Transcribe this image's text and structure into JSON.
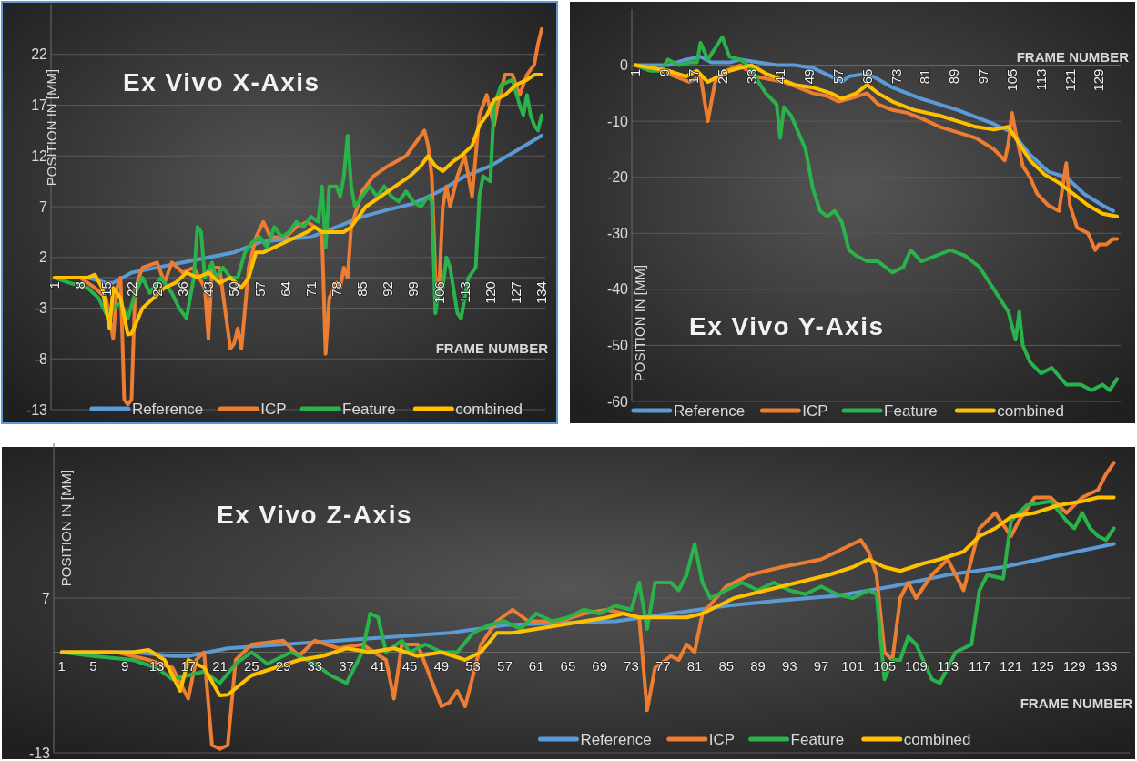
{
  "chart_data": [
    {
      "type": "line",
      "title": "Ex Vivo X-Axis",
      "xlabel": "FRAME NUMBER",
      "ylabel": "POSITION IN [MM]",
      "xlim": [
        0,
        135
      ],
      "xticks": [
        1,
        8,
        15,
        22,
        29,
        36,
        43,
        50,
        57,
        64,
        71,
        78,
        85,
        92,
        99,
        106,
        113,
        120,
        127,
        134
      ],
      "ylim": [
        -13,
        27
      ],
      "yticks": [
        -13,
        -8,
        -3,
        2,
        7,
        12,
        17,
        22
      ],
      "grid": "y",
      "legend": "bottom",
      "series": [
        {
          "name": "Reference",
          "color": "#5b9bd5",
          "x": [
            1,
            10,
            15,
            17,
            22,
            29,
            36,
            43,
            50,
            57,
            64,
            71,
            78,
            85,
            92,
            99,
            106,
            113,
            120,
            127,
            134
          ],
          "values": [
            0,
            0,
            -0.5,
            -0.5,
            0.5,
            1,
            1.5,
            2,
            2.5,
            3.5,
            3.8,
            4,
            5,
            6,
            6.7,
            7.3,
            8.5,
            10,
            11,
            12.5,
            14
          ]
        },
        {
          "name": "ICP",
          "color": "#ed7d31",
          "x": [
            1,
            8,
            12,
            15,
            17,
            18,
            19,
            20,
            21,
            22,
            23,
            25,
            29,
            31,
            33,
            36,
            39,
            42,
            43,
            44,
            46,
            49,
            50,
            51,
            52,
            54,
            56,
            58,
            60,
            64,
            67,
            70,
            72,
            74,
            75,
            76,
            78,
            79,
            80,
            81,
            82,
            85,
            88,
            92,
            97,
            100,
            102,
            103,
            104,
            105,
            106,
            107,
            108,
            109,
            111,
            113,
            115,
            117,
            119,
            121,
            122,
            124,
            126,
            128,
            130,
            132,
            133,
            134
          ],
          "values": [
            0,
            0,
            -1,
            -2,
            -6,
            -1,
            0,
            -12,
            -12.5,
            -12,
            -1,
            1,
            1.5,
            -0.5,
            1.5,
            0.5,
            1,
            -1,
            -6,
            1,
            1,
            -7,
            -6.5,
            -5,
            -7,
            1,
            4,
            5.5,
            4,
            4,
            5,
            5.5,
            5,
            4.5,
            -7.5,
            -2,
            -0.5,
            -1,
            1,
            0,
            5,
            8.5,
            10,
            11,
            12,
            13.5,
            14.5,
            13,
            10,
            0,
            -1,
            7,
            9,
            7,
            10,
            12,
            8,
            16,
            18,
            15,
            17,
            20,
            20,
            18,
            20,
            21,
            23,
            24.5
          ]
        },
        {
          "name": "Feature",
          "color": "#2ab34b",
          "x": [
            1,
            5,
            10,
            13,
            15,
            17,
            19,
            21,
            23,
            25,
            27,
            30,
            33,
            35,
            37,
            39,
            40,
            41,
            42,
            44,
            45,
            47,
            49,
            51,
            53,
            55,
            57,
            59,
            61,
            63,
            65,
            67,
            69,
            71,
            73,
            74,
            75,
            76,
            78,
            79,
            80,
            81,
            82,
            83,
            85,
            87,
            89,
            91,
            93,
            95,
            97,
            99,
            101,
            103,
            104,
            105,
            106,
            107,
            108,
            109,
            111,
            112,
            114,
            116,
            117,
            118,
            120,
            121,
            123,
            126,
            128,
            129,
            130,
            131,
            132,
            133,
            134
          ],
          "values": [
            0,
            -0.5,
            -1,
            -2,
            -3.5,
            -3,
            -2.5,
            -4,
            -1.5,
            0,
            -1.5,
            0,
            -1.5,
            -3,
            -4,
            0,
            5,
            4.5,
            0,
            1.5,
            0,
            1,
            0,
            0,
            2.5,
            3.5,
            4,
            3,
            5,
            4,
            4.5,
            5.5,
            5,
            6,
            5.5,
            9,
            3,
            9,
            9,
            8,
            10,
            14,
            9,
            7,
            8,
            9,
            8,
            9,
            8,
            7.5,
            8.5,
            7.5,
            7,
            8,
            7.5,
            -3.5,
            -1,
            -1,
            2,
            1,
            -3.5,
            -4,
            0,
            1,
            8,
            10,
            9.5,
            17,
            19,
            19.5,
            17,
            16,
            18,
            16,
            15,
            14.5,
            16
          ]
        },
        {
          "name": "combined",
          "color": "#ffc000",
          "x": [
            1,
            10,
            12,
            14,
            16,
            17,
            19,
            21,
            22,
            25,
            28,
            31,
            34,
            37,
            40,
            43,
            46,
            49,
            52,
            54,
            56,
            58,
            61,
            64,
            67,
            70,
            72,
            74,
            77,
            80,
            82,
            84,
            86,
            90,
            94,
            98,
            101,
            103,
            105,
            107,
            110,
            112,
            115,
            117,
            119,
            121,
            124,
            127,
            130,
            132,
            134
          ],
          "values": [
            0,
            0,
            0.3,
            -1,
            -5,
            -1,
            -2,
            -5.6,
            -5.5,
            -3,
            -2,
            -1,
            -0.5,
            0.5,
            0,
            0.5,
            -0.5,
            0,
            -1,
            0,
            2.5,
            2.5,
            3,
            3.5,
            4,
            4.5,
            5,
            4.5,
            4.5,
            4.5,
            5,
            6,
            7,
            8,
            9,
            10,
            11,
            12,
            11,
            10.5,
            11.5,
            12,
            13,
            15,
            16,
            17.5,
            18,
            19,
            19.5,
            20,
            20
          ]
        }
      ]
    },
    {
      "type": "line",
      "title": "Ex Vivo Y-Axis",
      "xlabel": "FRAME NUMBER",
      "ylabel": "POSITION IN [MM]",
      "xlim": [
        0,
        135
      ],
      "xticks": [
        1,
        9,
        17,
        25,
        33,
        41,
        49,
        57,
        65,
        73,
        81,
        89,
        97,
        105,
        113,
        121,
        129
      ],
      "ylim": [
        -60,
        10
      ],
      "yticks": [
        -60,
        -50,
        -40,
        -30,
        -20,
        -10,
        0
      ],
      "grid": "y",
      "legend": "bottom",
      "series": [
        {
          "name": "Reference",
          "color": "#5b9bd5",
          "x": [
            1,
            10,
            15,
            19,
            22,
            27,
            30,
            35,
            40,
            45,
            50,
            55,
            58,
            60,
            65,
            68,
            72,
            80,
            90,
            100,
            105,
            110,
            115,
            120,
            125,
            130,
            133
          ],
          "values": [
            0,
            0,
            1,
            1.5,
            0.5,
            0.5,
            1,
            0.5,
            0,
            0,
            -0.5,
            -2,
            -3,
            -2,
            -1.5,
            -2.5,
            -4,
            -6,
            -8,
            -10.5,
            -12,
            -16,
            -19,
            -20,
            -23,
            -25,
            -26
          ]
        },
        {
          "name": "ICP",
          "color": "#ed7d31",
          "x": [
            1,
            8,
            12,
            16,
            19,
            21,
            23,
            26,
            30,
            34,
            38,
            42,
            46,
            50,
            54,
            57,
            60,
            65,
            68,
            72,
            76,
            80,
            85,
            90,
            95,
            100,
            103,
            104,
            105,
            106,
            108,
            110,
            112,
            115,
            118,
            120,
            121,
            123,
            126,
            128,
            129,
            131,
            133,
            134
          ],
          "values": [
            0,
            -1,
            -2,
            -3,
            -2,
            -10,
            -3,
            -1,
            0,
            -2,
            -2.5,
            -3,
            -4,
            -5,
            -5.5,
            -6.5,
            -6,
            -5,
            -7,
            -8,
            -8.5,
            -9.5,
            -11,
            -12,
            -13,
            -15,
            -17,
            -14,
            -8.5,
            -12,
            -18,
            -20,
            -23,
            -25,
            -26,
            -17.5,
            -25,
            -29,
            -30,
            -33,
            -32,
            -32,
            -31,
            -31
          ]
        },
        {
          "name": "Feature",
          "color": "#2ab34b",
          "x": [
            1,
            5,
            8,
            10,
            13,
            16,
            18,
            19,
            21,
            23,
            25,
            27,
            30,
            33,
            35,
            37,
            40,
            41,
            42,
            44,
            46,
            48,
            50,
            52,
            54,
            56,
            58,
            60,
            62,
            65,
            68,
            70,
            72,
            75,
            77,
            80,
            84,
            88,
            92,
            96,
            100,
            104,
            106,
            107,
            108,
            110,
            113,
            116,
            120,
            124,
            127,
            130,
            132,
            134
          ],
          "values": [
            0,
            -1,
            -1,
            1,
            0,
            0.5,
            0.5,
            4,
            1,
            3,
            5,
            1.5,
            1,
            -0.5,
            -3,
            -5,
            -7,
            -13,
            -7.5,
            -9,
            -12,
            -15,
            -22,
            -26,
            -27,
            -26,
            -28,
            -33,
            -34,
            -35,
            -35,
            -36,
            -37,
            -36,
            -33,
            -35,
            -34,
            -33,
            -34,
            -36,
            -40,
            -44,
            -49,
            -44,
            -50,
            -53,
            -55,
            -54,
            -57,
            -57,
            -58,
            -57,
            -58,
            -56
          ]
        },
        {
          "name": "combined",
          "color": "#ffc000",
          "x": [
            1,
            10,
            15,
            18,
            21,
            24,
            27,
            30,
            33,
            37,
            41,
            45,
            50,
            55,
            58,
            62,
            65,
            68,
            72,
            78,
            85,
            90,
            95,
            100,
            104,
            106,
            110,
            114,
            118,
            122,
            126,
            130,
            134
          ],
          "values": [
            0,
            -1,
            -2,
            -1,
            -3,
            -2,
            -1,
            -0.5,
            0,
            -1.5,
            -2.5,
            -3.5,
            -4,
            -5,
            -6,
            -5,
            -3.5,
            -5,
            -6.5,
            -8,
            -9,
            -10,
            -11,
            -11.5,
            -11,
            -13,
            -17,
            -19.5,
            -21,
            -23,
            -25,
            -26.5,
            -27
          ]
        }
      ]
    },
    {
      "type": "line",
      "title": "Ex Vivo Z-Axis",
      "xlabel": "FRAME NUMBER",
      "ylabel": "POSITION IN [MM]",
      "xlim": [
        0,
        136
      ],
      "xticks": [
        1,
        5,
        9,
        13,
        17,
        21,
        25,
        29,
        33,
        37,
        41,
        45,
        49,
        53,
        57,
        61,
        65,
        69,
        73,
        77,
        81,
        85,
        89,
        93,
        97,
        101,
        105,
        109,
        113,
        117,
        121,
        125,
        129,
        133
      ],
      "ylim": [
        -13,
        27
      ],
      "yticks": [
        -13,
        7
      ],
      "grid": "y",
      "legend": "bottom",
      "series": [
        {
          "name": "Reference",
          "color": "#5b9bd5",
          "x": [
            1,
            10,
            15,
            17,
            22,
            29,
            36,
            43,
            50,
            57,
            64,
            71,
            78,
            85,
            92,
            99,
            106,
            113,
            120,
            127,
            134
          ],
          "values": [
            0,
            0,
            -0.5,
            -0.5,
            0.5,
            1,
            1.5,
            2,
            2.5,
            3.5,
            3.8,
            4,
            5,
            6,
            6.7,
            7.3,
            8.5,
            10,
            11,
            12.5,
            14
          ]
        },
        {
          "name": "ICP",
          "color": "#ed7d31",
          "x": [
            1,
            8,
            12,
            15,
            17,
            18,
            19,
            20,
            21,
            22,
            23,
            25,
            29,
            31,
            33,
            36,
            39,
            42,
            43,
            44,
            46,
            49,
            50,
            51,
            52,
            54,
            56,
            58,
            60,
            64,
            67,
            70,
            72,
            74,
            75,
            76,
            78,
            79,
            80,
            81,
            82,
            85,
            88,
            92,
            97,
            100,
            102,
            103,
            104,
            105,
            106,
            107,
            108,
            109,
            111,
            113,
            115,
            117,
            119,
            121,
            122,
            124,
            126,
            128,
            130,
            132,
            133,
            134
          ],
          "values": [
            0,
            0,
            -1,
            -2,
            -6,
            -1,
            0,
            -12,
            -12.5,
            -12,
            -1,
            1,
            1.5,
            -0.5,
            1.5,
            0.5,
            1,
            -1,
            -6,
            1,
            1,
            -7,
            -6.5,
            -5,
            -7,
            1,
            4,
            5.5,
            4,
            4,
            5,
            5.5,
            5,
            4.5,
            -7.5,
            -2,
            -0.5,
            -1,
            1,
            0,
            5,
            8.5,
            10,
            11,
            12,
            13.5,
            14.5,
            13,
            10,
            0,
            -1,
            7,
            9,
            7,
            10,
            12,
            8,
            16,
            18,
            15,
            17,
            20,
            20,
            18,
            20,
            21,
            23,
            24.5
          ]
        },
        {
          "name": "Feature",
          "color": "#2ab34b",
          "x": [
            1,
            5,
            10,
            13,
            15,
            17,
            19,
            21,
            23,
            25,
            27,
            30,
            33,
            35,
            37,
            39,
            40,
            41,
            42,
            44,
            45,
            47,
            49,
            51,
            53,
            55,
            57,
            59,
            61,
            63,
            65,
            67,
            69,
            71,
            73,
            74,
            75,
            76,
            78,
            79,
            80,
            81,
            82,
            83,
            85,
            87,
            89,
            91,
            93,
            95,
            97,
            99,
            101,
            103,
            104,
            105,
            106,
            107,
            108,
            109,
            111,
            112,
            114,
            116,
            117,
            118,
            120,
            121,
            123,
            126,
            128,
            129,
            130,
            131,
            132,
            133,
            134
          ],
          "values": [
            0,
            -0.5,
            -1,
            -2,
            -3.5,
            -3,
            -2.5,
            -4,
            -1.5,
            0,
            -1.5,
            0,
            -1.5,
            -3,
            -4,
            0,
            5,
            4.5,
            0,
            1.5,
            0,
            1,
            0,
            0,
            2.5,
            3.5,
            4,
            3,
            5,
            4,
            4.5,
            5.5,
            5,
            6,
            5.5,
            9,
            3,
            9,
            9,
            8,
            10,
            14,
            9,
            7,
            8,
            9,
            8,
            9,
            8,
            7.5,
            8.5,
            7.5,
            7,
            8,
            7.5,
            -3.5,
            -1,
            -1,
            2,
            1,
            -3.5,
            -4,
            0,
            1,
            8,
            10,
            9.5,
            17,
            19,
            19.5,
            17,
            16,
            18,
            16,
            15,
            14.5,
            16
          ]
        },
        {
          "name": "combined",
          "color": "#ffc000",
          "x": [
            1,
            10,
            12,
            14,
            16,
            17,
            19,
            21,
            22,
            25,
            28,
            31,
            34,
            37,
            40,
            43,
            46,
            49,
            52,
            54,
            56,
            58,
            61,
            64,
            67,
            70,
            72,
            74,
            77,
            80,
            82,
            84,
            86,
            90,
            94,
            98,
            101,
            103,
            105,
            107,
            110,
            112,
            115,
            117,
            119,
            121,
            124,
            127,
            130,
            132,
            134
          ],
          "values": [
            0,
            0,
            0.3,
            -1,
            -5,
            -1,
            -2,
            -5.6,
            -5.5,
            -3,
            -2,
            -1,
            -0.5,
            0.5,
            0,
            0.5,
            -0.5,
            0,
            -1,
            0,
            2.5,
            2.5,
            3,
            3.5,
            4,
            4.5,
            5,
            4.5,
            4.5,
            4.5,
            5,
            6,
            7,
            8,
            9,
            10,
            11,
            12,
            11,
            10.5,
            11.5,
            12,
            13,
            15,
            16,
            17.5,
            18,
            19,
            19.5,
            20,
            20
          ]
        }
      ]
    }
  ]
}
